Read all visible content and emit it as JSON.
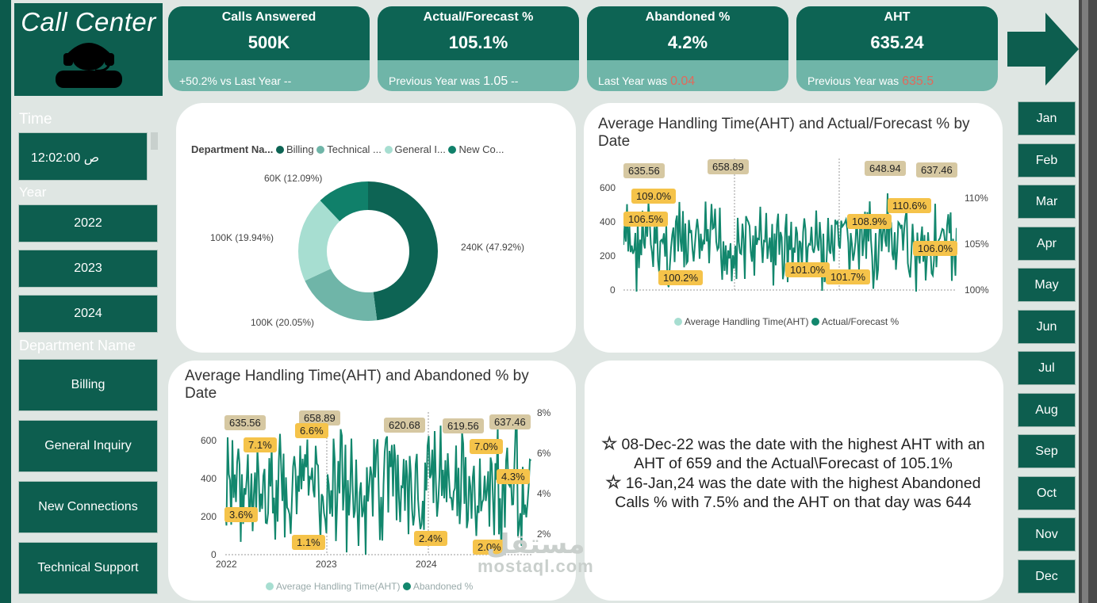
{
  "title": "Call Center",
  "kpis": [
    {
      "title": "Calls Answered",
      "value": "500K",
      "footer": "+50.2% vs Last Year --"
    },
    {
      "title": "Actual/Forecast %",
      "value": "105.1%",
      "footer_label": "Previous Year was",
      "footer_value": "1.05",
      "footer_suffix": "--"
    },
    {
      "title": "Abandoned %",
      "value": "4.2%",
      "footer_label": "Last Year was",
      "footer_value": "0.04"
    },
    {
      "title": "AHT",
      "value": "635.24",
      "footer_label": "Previous Year was",
      "footer_value": "635.5"
    }
  ],
  "filters": {
    "time_label": "Time",
    "time_value": "12:02:00 ص",
    "year_label": "Year",
    "years": [
      "2022",
      "2023",
      "2024"
    ],
    "department_label": "Department Name",
    "departments": [
      "Billing",
      "General Inquiry",
      "New Connections",
      "Technical Support"
    ],
    "months": [
      "Jan",
      "Feb",
      "Mar",
      "Apr",
      "May",
      "Jun",
      "Jul",
      "Aug",
      "Sep",
      "Oct",
      "Nov",
      "Dec"
    ]
  },
  "colors": {
    "primary": "#0d5e4f",
    "billing": "#0d6454",
    "technical": "#6fb5a8",
    "general": "#a7ded1",
    "new": "#10806a",
    "aht_tag": "#d6c8a2",
    "pct_tag": "#f5c34a"
  },
  "donut": {
    "legend_title": "Department Na...",
    "legend": [
      "Billing",
      "Technical ...",
      "General I...",
      "New Co..."
    ],
    "labels": [
      "240K (47.92%)",
      "100K (20.05%)",
      "100K (19.94%)",
      "60K (12.09%)"
    ]
  },
  "aht_forecast": {
    "title": "Average Handling Time(AHT) and Actual/Forecast % by Date",
    "y_left": [
      "600",
      "400",
      "200",
      "0"
    ],
    "y_right": [
      "110%",
      "105%",
      "100%"
    ],
    "aht_tags": [
      "635.56",
      "658.89",
      "648.94",
      "637.46"
    ],
    "pct_tags": [
      "109.0%",
      "106.5%",
      "100.2%",
      "101.0%",
      "101.7%",
      "108.9%",
      "110.6%",
      "106.0%"
    ],
    "legend": [
      "Average Handling Time(AHT)",
      "Actual/Forecast %"
    ]
  },
  "aht_abandoned": {
    "title": "Average Handling Time(AHT) and Abandoned % by Date",
    "y_left": [
      "600",
      "400",
      "200",
      "0"
    ],
    "y_right": [
      "8%",
      "6%",
      "4%",
      "2%"
    ],
    "x_labels": [
      "2022",
      "2023",
      "2024"
    ],
    "aht_tags": [
      "635.56",
      "658.89",
      "620.68",
      "619.56",
      "637.46"
    ],
    "pct_tags": [
      "7.1%",
      "6.6%",
      "7.0%",
      "4.3%",
      "3.6%",
      "1.1%",
      "2.4%",
      "2.0%"
    ],
    "legend": [
      "Average Handling Time(AHT)",
      "Abandoned %"
    ]
  },
  "insights": {
    "line1": "08-Dec-22 was the date with the highest AHT with an AHT of 659 and the Actual\\Forecast of 105.1%",
    "line2": "16-Jan,24 was the date with the highest Abandoned Calls % with 7.5% and the AHT on that day was 644"
  },
  "watermark": {
    "arabic": "مستقل",
    "latin": "mostaql.com"
  }
}
